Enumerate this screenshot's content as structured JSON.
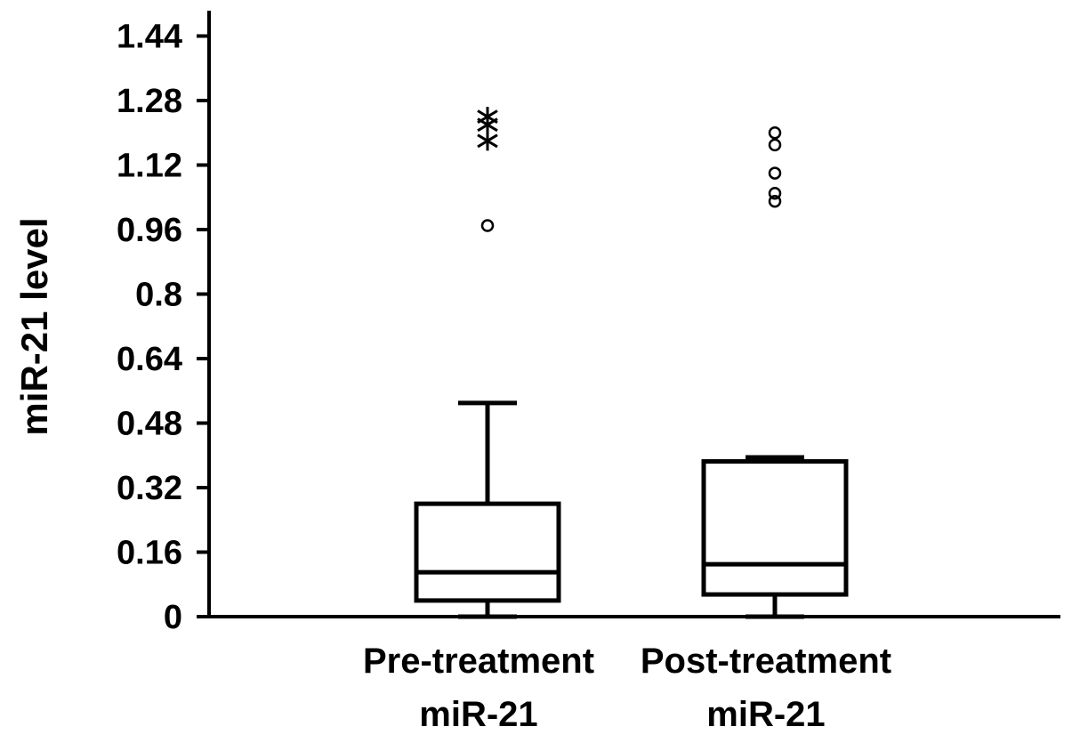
{
  "chart_data": {
    "type": "boxplot",
    "title": "",
    "xlabel": "",
    "ylabel": "miR-21 level",
    "ylim": [
      0,
      1.5
    ],
    "yticks": [
      0,
      0.16,
      0.32,
      0.48,
      0.64,
      0.8,
      0.96,
      1.12,
      1.28,
      1.44
    ],
    "ytick_labels": [
      "0",
      "0.16",
      "0.32",
      "0.48",
      "0.64",
      "0.8",
      "0.96",
      "1.12",
      "1.28",
      "1.44"
    ],
    "grid": false,
    "categories": [
      {
        "line1": "Pre-treatment",
        "line2": "miR-21"
      },
      {
        "line1": "Post-treatment",
        "line2": "miR-21"
      }
    ],
    "boxes": [
      {
        "min": 0.0,
        "q1": 0.04,
        "median": 0.11,
        "q3": 0.28,
        "max": 0.53,
        "outliers": [
          0.97
        ],
        "extremes": [
          1.18,
          1.22,
          1.24
        ]
      },
      {
        "min": 0.0,
        "q1": 0.055,
        "median": 0.13,
        "q3": 0.385,
        "max": 0.395,
        "outliers": [
          1.03,
          1.05,
          1.1,
          1.17,
          1.2
        ],
        "extremes": []
      }
    ]
  }
}
